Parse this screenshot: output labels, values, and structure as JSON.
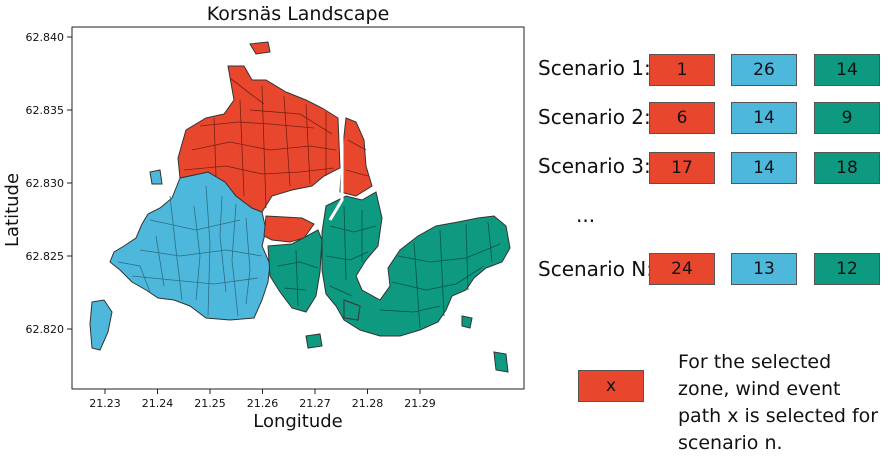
{
  "map": {
    "title": "Korsnäs Landscape",
    "xlabel": "Longitude",
    "ylabel": "Latitude",
    "x_ticks": [
      "21.23",
      "21.24",
      "21.25",
      "21.26",
      "21.27",
      "21.28",
      "21.29"
    ],
    "y_ticks": [
      "62.840",
      "62.835",
      "62.830",
      "62.825",
      "62.820"
    ],
    "colors": {
      "zone_red": "#e8472e",
      "zone_blue": "#4db8dc",
      "zone_green": "#0d9a80"
    }
  },
  "legend": {
    "rows": [
      {
        "label": "Scenario 1:",
        "values": [
          "1",
          "26",
          "14"
        ]
      },
      {
        "label": "Scenario 2:",
        "values": [
          "6",
          "14",
          "9"
        ]
      },
      {
        "label": "Scenario 3:",
        "values": [
          "17",
          "14",
          "18"
        ]
      },
      {
        "label": "Scenario N:",
        "values": [
          "24",
          "13",
          "12"
        ]
      }
    ],
    "ellipsis": "...",
    "column_colors": [
      "#e8472e",
      "#4db8dc",
      "#0d9a80"
    ]
  },
  "key": {
    "cell_text": "x",
    "note": "For the selected zone, wind event path x is selected for scenario n."
  }
}
